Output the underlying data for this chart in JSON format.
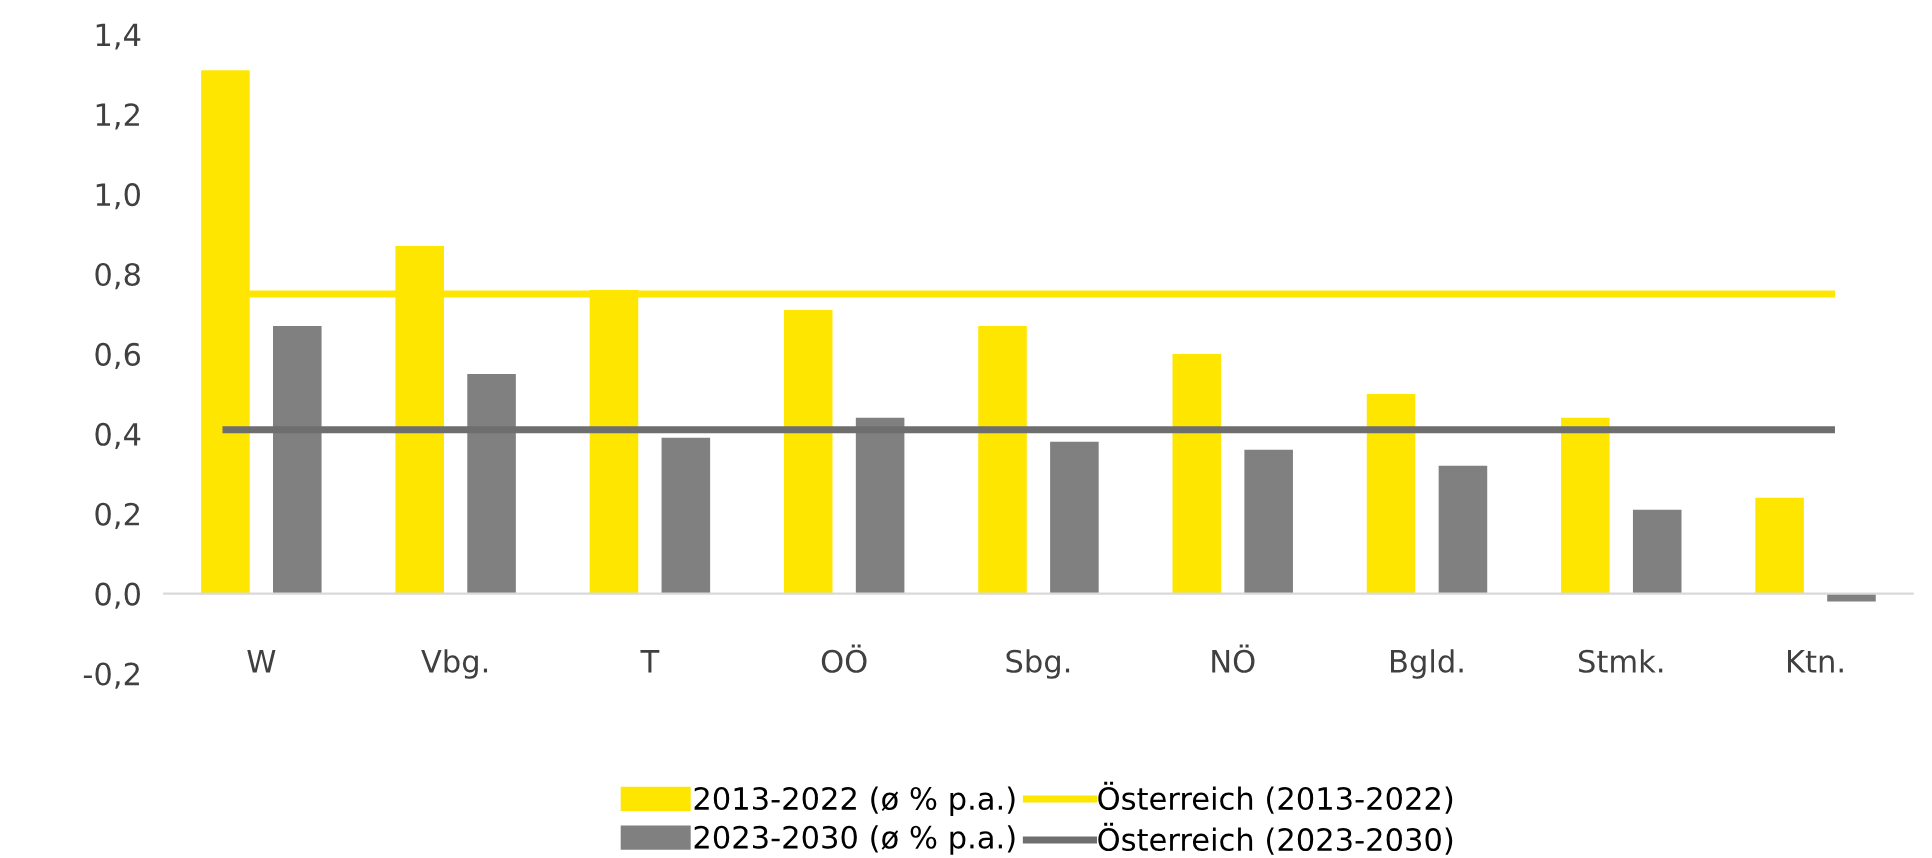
{
  "chart_data": {
    "type": "bar",
    "categories": [
      "W",
      "Vbg.",
      "T",
      "OÖ",
      "Sbg.",
      "NÖ",
      "Bgld.",
      "Stmk.",
      "Ktn."
    ],
    "series": [
      {
        "name": "2013-2022 (ø % p.a.)",
        "color": "#ffe600",
        "values": [
          1.31,
          0.87,
          0.76,
          0.71,
          0.67,
          0.6,
          0.5,
          0.44,
          0.24
        ]
      },
      {
        "name": "2023-2030 (ø % p.a.)",
        "color": "#808080",
        "values": [
          0.67,
          0.55,
          0.39,
          0.44,
          0.38,
          0.36,
          0.32,
          0.21,
          -0.02
        ]
      }
    ],
    "ref_lines": [
      {
        "axis": "y",
        "value": 0.75,
        "label": "Österreich (2013-2022)",
        "color": "#ffe600",
        "line_style": "solid"
      },
      {
        "axis": "y",
        "value": 0.41,
        "label": "Österreich (2023-2030)",
        "color": "#6e6e6e",
        "line_style": "solid"
      }
    ],
    "ylim": [
      -0.2,
      1.4
    ],
    "yticks": [
      {
        "value": -0.2,
        "label": "-0,2"
      },
      {
        "value": 0,
        "label": "0,0"
      },
      {
        "value": 0.2,
        "label": "0,2"
      },
      {
        "value": 0.4,
        "label": "0,4"
      },
      {
        "value": 0.6,
        "label": "0,6"
      },
      {
        "value": 0.8,
        "label": "0,8"
      },
      {
        "value": 1.0,
        "label": "1,0"
      },
      {
        "value": 1.2,
        "label": "1,2"
      },
      {
        "value": 1.4,
        "label": "1,4"
      }
    ],
    "grid": false,
    "legend": "bottom"
  }
}
